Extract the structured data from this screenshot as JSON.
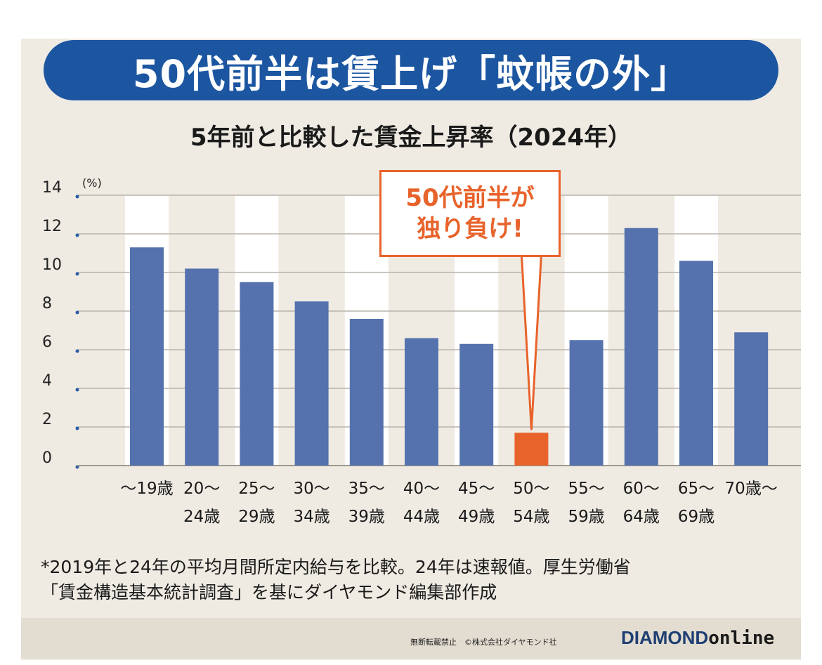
{
  "title": "50代前半は賃上げ「蚊帳の外」",
  "subtitle": "5年前と比較した賃金上昇率（2024年）",
  "callout": {
    "line1": "50代前半が",
    "line2": "独り負け!"
  },
  "note": {
    "line1": "*2019年と24年の平均月間所定内給与を比較。24年は速報値。厚生労働省",
    "line2": "「賃金構造基本統計調査」を基にダイヤモンド編集部作成"
  },
  "footer": {
    "copyright": "無断転載禁止　©株式会社ダイヤモンド社",
    "brand_main": "DIAMOND",
    "brand_sub": "online"
  },
  "colors": {
    "bar": "#5572ae",
    "highlight": "#e8632b",
    "banner": "#1c56a1",
    "background": "#efebe3",
    "stripe": "#ffffff"
  },
  "chart_data": {
    "type": "bar",
    "title": "5年前と比較した賃金上昇率（2024年）",
    "ylabel": "(%)",
    "ylim": [
      0,
      14
    ],
    "yticks": [
      0,
      2,
      4,
      6,
      8,
      10,
      12,
      14
    ],
    "grid": true,
    "categories": [
      [
        "〜19歳",
        ""
      ],
      [
        "20〜",
        "24歳"
      ],
      [
        "25〜",
        "29歳"
      ],
      [
        "30〜",
        "34歳"
      ],
      [
        "35〜",
        "39歳"
      ],
      [
        "40〜",
        "44歳"
      ],
      [
        "45〜",
        "49歳"
      ],
      [
        "50〜",
        "54歳"
      ],
      [
        "55〜",
        "59歳"
      ],
      [
        "60〜",
        "64歳"
      ],
      [
        "65〜",
        "69歳"
      ],
      [
        "70歳〜",
        ""
      ]
    ],
    "values": [
      11.3,
      10.2,
      9.5,
      8.5,
      7.6,
      6.6,
      6.3,
      1.7,
      6.5,
      12.3,
      10.6,
      6.9
    ],
    "highlight_index": 7
  }
}
